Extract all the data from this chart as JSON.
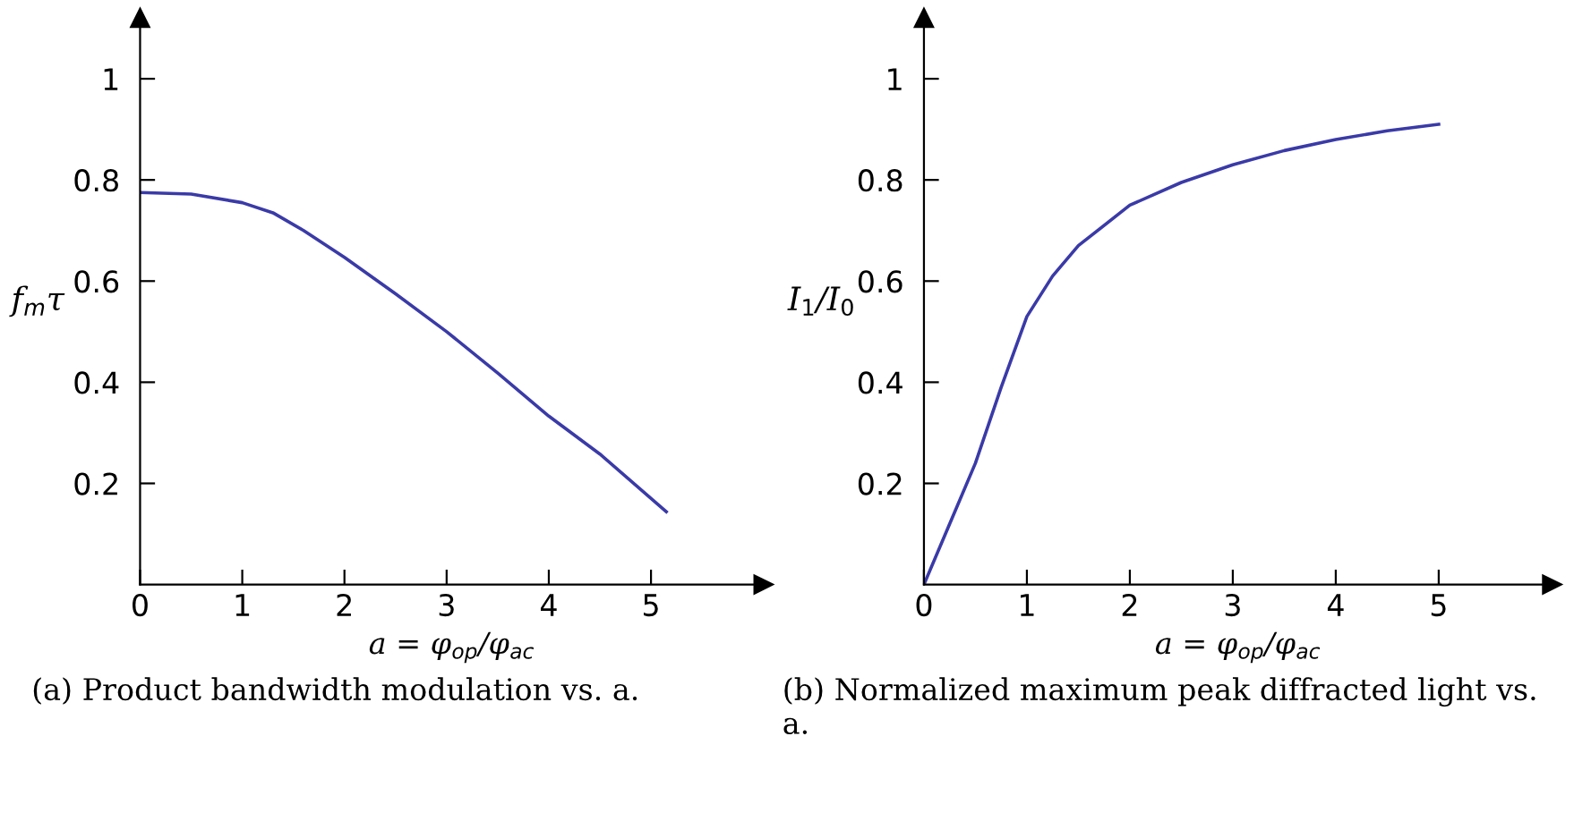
{
  "chart_data": [
    {
      "type": "line",
      "xlabel": "a = φ$_{op}$/φ$_{ac}$",
      "ylabel": "f$_{m}$τ",
      "x": [
        0,
        0.5,
        1,
        1.3,
        1.6,
        2,
        2.5,
        3,
        3.5,
        4,
        4.5,
        5.15
      ],
      "series": [
        {
          "color": "#3a3aa8",
          "values": [
            0.775,
            0.772,
            0.755,
            0.735,
            0.7,
            0.647,
            0.575,
            0.5,
            0.418,
            0.333,
            0.258,
            0.144
          ]
        }
      ],
      "xlim": [
        0,
        6.1
      ],
      "ylim": [
        0,
        1.12
      ],
      "xticks": [
        0,
        1,
        2,
        3,
        4,
        5
      ],
      "yticks": [
        0.2,
        0.4,
        0.6,
        0.8,
        1
      ],
      "grid": false,
      "legend": false,
      "marker": "none",
      "line_style": "solid",
      "annotations": [
        "(a) Product bandwidth modulation vs. a."
      ]
    },
    {
      "type": "line",
      "xlabel": "a = φ$_{op}$/φ$_{ac}$",
      "ylabel": "I$_{1}$/I$_{0}$",
      "x": [
        0,
        0.25,
        0.5,
        0.75,
        1,
        1.25,
        1.5,
        2,
        2.5,
        3,
        3.5,
        4,
        4.5,
        5
      ],
      "series": [
        {
          "color": "#3a3aa8",
          "values": [
            0,
            0.12,
            0.24,
            0.39,
            0.53,
            0.61,
            0.67,
            0.75,
            0.795,
            0.83,
            0.858,
            0.88,
            0.897,
            0.91
          ]
        }
      ],
      "xlim": [
        0,
        6.1
      ],
      "ylim": [
        0,
        1.12
      ],
      "xticks": [
        0,
        1,
        2,
        3,
        4,
        5
      ],
      "yticks": [
        0.2,
        0.4,
        0.6,
        0.8,
        1
      ],
      "grid": false,
      "legend": false,
      "marker": "none",
      "line_style": "solid",
      "annotations": [
        "(b) Normalized maximum peak diffracted light vs. a."
      ]
    }
  ]
}
